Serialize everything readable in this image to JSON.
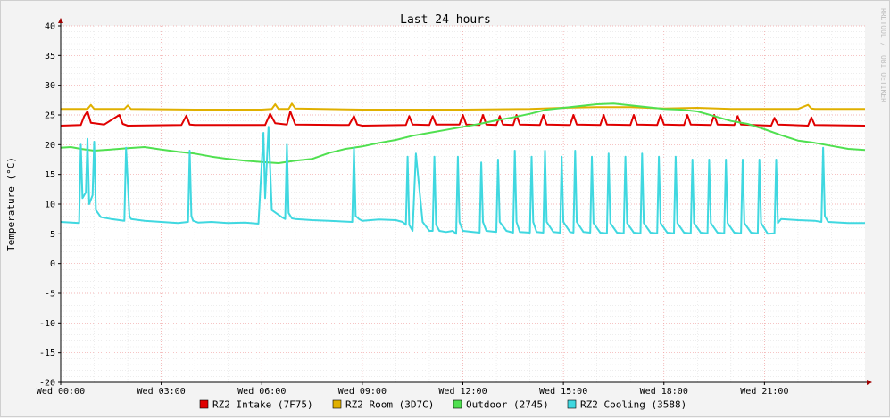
{
  "chart_data": {
    "type": "line",
    "title": "Last 24 hours",
    "ylabel": "Temperature (°C)",
    "watermark": "RRDTOOL / TOBI OETIKER",
    "ylim": [
      -20,
      40
    ],
    "yticks": [
      40,
      35,
      30,
      25,
      20,
      15,
      10,
      5,
      0,
      -5,
      -10,
      -15,
      -20
    ],
    "xlim": [
      0,
      24
    ],
    "xticks": [
      {
        "hour": 0,
        "label": "Wed 00:00"
      },
      {
        "hour": 3,
        "label": "Wed 03:00"
      },
      {
        "hour": 6,
        "label": "Wed 06:00"
      },
      {
        "hour": 9,
        "label": "Wed 09:00"
      },
      {
        "hour": 12,
        "label": "Wed 12:00"
      },
      {
        "hour": 15,
        "label": "Wed 15:00"
      },
      {
        "hour": 18,
        "label": "Wed 18:00"
      },
      {
        "hour": 21,
        "label": "Wed 21:00"
      }
    ],
    "grid": true,
    "legend_position": "bottom",
    "series": [
      {
        "name": "RZ2 Intake (7F75)",
        "color": "#e00000",
        "x": [
          0.0,
          0.6,
          0.7,
          0.8,
          0.9,
          1.3,
          1.75,
          1.85,
          2.0,
          3.6,
          3.75,
          3.85,
          4.0,
          6.1,
          6.25,
          6.4,
          6.75,
          6.85,
          7.0,
          8.6,
          8.75,
          8.85,
          9.0,
          10.3,
          10.4,
          10.5,
          11.0,
          11.1,
          11.2,
          11.9,
          12.0,
          12.1,
          12.5,
          12.6,
          12.7,
          13.0,
          13.1,
          13.2,
          13.5,
          13.6,
          13.7,
          14.3,
          14.4,
          14.5,
          15.2,
          15.3,
          15.4,
          16.1,
          16.2,
          16.3,
          17.0,
          17.1,
          17.2,
          17.8,
          17.9,
          18.0,
          18.6,
          18.7,
          18.8,
          19.4,
          19.5,
          19.6,
          20.1,
          20.2,
          20.3,
          21.2,
          21.3,
          21.4,
          22.3,
          22.4,
          22.5,
          24.0
        ],
        "y": [
          23.2,
          23.3,
          24.8,
          25.6,
          23.7,
          23.4,
          25.0,
          23.5,
          23.2,
          23.3,
          24.9,
          23.4,
          23.3,
          23.3,
          25.2,
          23.6,
          23.4,
          25.6,
          23.4,
          23.3,
          24.8,
          23.4,
          23.2,
          23.3,
          24.8,
          23.4,
          23.3,
          24.8,
          23.4,
          23.4,
          25.0,
          23.4,
          23.3,
          25.0,
          23.4,
          23.3,
          24.8,
          23.4,
          23.3,
          25.0,
          23.4,
          23.3,
          25.0,
          23.4,
          23.3,
          25.0,
          23.4,
          23.3,
          25.0,
          23.4,
          23.3,
          25.0,
          23.4,
          23.3,
          25.0,
          23.4,
          23.3,
          25.0,
          23.4,
          23.3,
          25.0,
          23.4,
          23.3,
          24.8,
          23.4,
          23.2,
          24.5,
          23.4,
          23.2,
          24.6,
          23.3,
          23.2
        ]
      },
      {
        "name": "RZ2 Room (3D7C)",
        "color": "#e0b000",
        "x": [
          0.0,
          0.8,
          0.9,
          1.0,
          1.9,
          2.0,
          2.1,
          4.0,
          6.0,
          6.3,
          6.4,
          6.5,
          6.8,
          6.9,
          7.0,
          9.0,
          12.0,
          14.0,
          15.0,
          16.0,
          17.0,
          18.0,
          19.0,
          20.0,
          21.0,
          22.0,
          22.3,
          22.4,
          22.5,
          24.0
        ],
        "y": [
          26.0,
          26.0,
          26.7,
          26.0,
          26.0,
          26.6,
          26.0,
          25.9,
          25.9,
          26.0,
          26.8,
          26.0,
          26.0,
          26.9,
          26.1,
          25.9,
          25.9,
          26.0,
          26.2,
          26.3,
          26.3,
          26.1,
          26.2,
          26.0,
          26.0,
          26.0,
          26.7,
          26.1,
          26.0,
          26.0
        ]
      },
      {
        "name": "Outdoor (2745)",
        "color": "#50e050",
        "x": [
          0.0,
          0.3,
          0.6,
          1.0,
          1.5,
          2.0,
          2.5,
          3.0,
          3.5,
          4.0,
          4.5,
          5.0,
          5.5,
          6.0,
          6.5,
          7.0,
          7.5,
          8.0,
          8.5,
          9.0,
          9.5,
          10.0,
          10.5,
          11.0,
          11.5,
          12.0,
          12.5,
          13.0,
          13.5,
          14.0,
          14.5,
          15.0,
          15.5,
          16.0,
          16.5,
          17.0,
          17.5,
          18.0,
          18.5,
          19.0,
          19.5,
          20.0,
          20.5,
          21.0,
          21.5,
          22.0,
          22.5,
          23.0,
          23.5,
          24.0
        ],
        "y": [
          19.5,
          19.6,
          19.3,
          19.0,
          19.2,
          19.4,
          19.6,
          19.2,
          18.8,
          18.5,
          18.0,
          17.6,
          17.3,
          17.1,
          16.9,
          17.3,
          17.6,
          18.6,
          19.3,
          19.7,
          20.3,
          20.8,
          21.5,
          22.0,
          22.5,
          23.0,
          23.5,
          24.1,
          24.6,
          25.2,
          25.9,
          26.2,
          26.5,
          26.8,
          26.9,
          26.6,
          26.3,
          26.0,
          25.9,
          25.6,
          24.8,
          24.0,
          23.5,
          22.6,
          21.6,
          20.7,
          20.3,
          19.8,
          19.3,
          19.1
        ]
      },
      {
        "name": "RZ2 Cooling (3588)",
        "color": "#40d8e0",
        "x": [
          0.0,
          0.55,
          0.6,
          0.65,
          0.75,
          0.8,
          0.85,
          0.95,
          1.0,
          1.05,
          1.2,
          1.5,
          1.9,
          1.95,
          2.05,
          2.1,
          2.5,
          3.0,
          3.5,
          3.8,
          3.85,
          3.9,
          3.95,
          4.1,
          4.5,
          5.0,
          5.5,
          5.9,
          6.05,
          6.1,
          6.2,
          6.3,
          6.6,
          6.7,
          6.75,
          6.8,
          6.9,
          7.0,
          7.5,
          8.0,
          8.7,
          8.75,
          8.8,
          8.9,
          9.0,
          9.5,
          10.0,
          10.2,
          10.3,
          10.35,
          10.4,
          10.5,
          10.6,
          10.8,
          11.0,
          11.1,
          11.15,
          11.2,
          11.3,
          11.5,
          11.7,
          11.8,
          11.85,
          11.9,
          12.0,
          12.3,
          12.5,
          12.55,
          12.6,
          12.7,
          13.0,
          13.05,
          13.1,
          13.3,
          13.5,
          13.55,
          13.6,
          13.7,
          14.0,
          14.05,
          14.1,
          14.2,
          14.4,
          14.45,
          14.5,
          14.7,
          14.9,
          14.95,
          15.0,
          15.2,
          15.3,
          15.35,
          15.4,
          15.6,
          15.8,
          15.85,
          15.9,
          16.1,
          16.3,
          16.35,
          16.4,
          16.6,
          16.8,
          16.85,
          16.9,
          17.1,
          17.3,
          17.35,
          17.4,
          17.6,
          17.8,
          17.85,
          17.9,
          18.1,
          18.3,
          18.35,
          18.4,
          18.6,
          18.8,
          18.85,
          18.9,
          19.1,
          19.3,
          19.35,
          19.4,
          19.6,
          19.8,
          19.85,
          19.9,
          20.1,
          20.3,
          20.35,
          20.4,
          20.6,
          20.8,
          20.85,
          20.9,
          21.1,
          21.3,
          21.35,
          21.4,
          21.5,
          22.0,
          22.5,
          22.7,
          22.75,
          22.8,
          22.9,
          23.5,
          24.0
        ],
        "y": [
          7.0,
          6.8,
          20.0,
          11.0,
          12.0,
          21.0,
          10.0,
          11.5,
          20.5,
          9.0,
          7.8,
          7.5,
          7.2,
          19.5,
          8.0,
          7.5,
          7.2,
          7.0,
          6.8,
          7.0,
          19.0,
          8.0,
          7.2,
          6.9,
          7.0,
          6.8,
          6.9,
          6.7,
          22.0,
          11.0,
          23.0,
          9.0,
          7.8,
          7.5,
          20.0,
          8.5,
          7.6,
          7.5,
          7.3,
          7.2,
          7.0,
          19.5,
          8.0,
          7.5,
          7.2,
          7.4,
          7.3,
          7.0,
          6.5,
          18.0,
          6.5,
          5.5,
          18.5,
          7.0,
          5.5,
          5.5,
          18.0,
          6.5,
          5.5,
          5.3,
          5.5,
          5.0,
          18.0,
          7.0,
          5.5,
          5.3,
          5.2,
          17.0,
          7.0,
          5.5,
          5.3,
          17.5,
          7.0,
          5.5,
          5.2,
          19.0,
          7.0,
          5.3,
          5.2,
          18.0,
          7.0,
          5.3,
          5.2,
          19.0,
          7.0,
          5.3,
          5.2,
          18.0,
          7.0,
          5.3,
          5.2,
          19.0,
          7.0,
          5.3,
          5.2,
          18.0,
          6.8,
          5.2,
          5.1,
          18.5,
          6.8,
          5.2,
          5.1,
          18.0,
          6.8,
          5.2,
          5.1,
          18.5,
          6.8,
          5.2,
          5.1,
          18.0,
          6.8,
          5.2,
          5.1,
          18.0,
          6.8,
          5.2,
          5.1,
          17.5,
          6.8,
          5.2,
          5.1,
          17.5,
          6.8,
          5.2,
          5.1,
          17.5,
          6.8,
          5.2,
          5.1,
          17.5,
          6.8,
          5.2,
          5.1,
          17.5,
          6.8,
          5.0,
          5.1,
          17.5,
          6.8,
          7.5,
          7.3,
          7.2,
          7.0,
          19.5,
          8.0,
          7.0,
          6.8,
          6.8
        ]
      }
    ]
  }
}
